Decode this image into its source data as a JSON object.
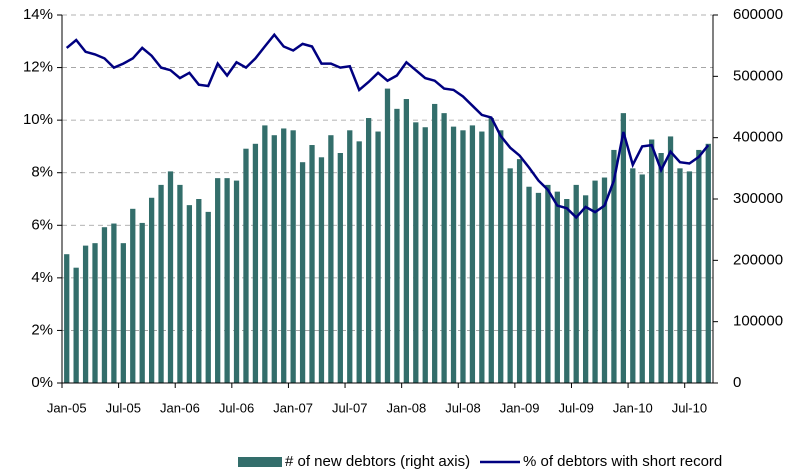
{
  "chart_data": {
    "type": "bar_line",
    "categories": [
      "Jan-05",
      null,
      null,
      null,
      null,
      null,
      "Jul-05",
      null,
      null,
      null,
      null,
      null,
      "Jan-06",
      null,
      null,
      null,
      null,
      null,
      "Jul-06",
      null,
      null,
      null,
      null,
      null,
      "Jan-07",
      null,
      null,
      null,
      null,
      null,
      "Jul-07",
      null,
      null,
      null,
      null,
      null,
      "Jan-08",
      null,
      null,
      null,
      null,
      null,
      "Jul-08",
      null,
      null,
      null,
      null,
      null,
      "Jan-09",
      null,
      null,
      null,
      null,
      null,
      "Jul-09",
      null,
      null,
      null,
      null,
      null,
      "Jan-10",
      null,
      null,
      null,
      null,
      null,
      "Jul-10",
      null,
      null
    ],
    "series": [
      {
        "name": "# of new debtors (right axis)",
        "type": "bar",
        "axis": "y2",
        "color": "#336e6b",
        "values": [
          210000,
          188000,
          224000,
          228000,
          254000,
          260000,
          228000,
          284000,
          261000,
          302000,
          323000,
          345000,
          323000,
          290000,
          300000,
          279000,
          334000,
          334000,
          330000,
          382000,
          390000,
          420000,
          404000,
          415000,
          412000,
          360000,
          388000,
          368000,
          404000,
          375000,
          412000,
          394000,
          432000,
          410000,
          480000,
          447000,
          463000,
          425000,
          417000,
          455000,
          440000,
          418000,
          412000,
          420000,
          410000,
          432000,
          412000,
          350000,
          365000,
          320000,
          310000,
          323000,
          312000,
          300000,
          323000,
          306000,
          330000,
          335000,
          380000,
          440000,
          350000,
          340000,
          397000,
          375000,
          402000,
          350000,
          345000,
          380000,
          390000
        ]
      },
      {
        "name": "% of debtors with short record",
        "type": "line",
        "axis": "y",
        "color": "#000080",
        "values": [
          12.75,
          13.05,
          12.6,
          12.5,
          12.35,
          12.0,
          12.15,
          12.35,
          12.75,
          12.45,
          12.0,
          11.9,
          11.6,
          11.8,
          11.35,
          11.3,
          12.15,
          11.7,
          12.2,
          12.0,
          12.35,
          12.8,
          13.25,
          12.8,
          12.65,
          12.9,
          12.8,
          12.15,
          12.15,
          12.0,
          12.05,
          11.15,
          11.45,
          11.8,
          11.5,
          11.7,
          12.2,
          11.9,
          11.6,
          11.5,
          11.2,
          11.15,
          10.9,
          10.55,
          10.2,
          10.1,
          9.4,
          8.95,
          8.65,
          8.2,
          7.7,
          7.35,
          6.75,
          6.65,
          6.3,
          6.7,
          6.5,
          6.75,
          7.7,
          9.55,
          8.3,
          9.0,
          9.05,
          8.1,
          8.8,
          8.4,
          8.35,
          8.6,
          9.05
        ]
      }
    ],
    "ylim": [
      0,
      14
    ],
    "yticks": [
      {
        "value": 0,
        "label": "0%"
      },
      {
        "value": 2,
        "label": "2%"
      },
      {
        "value": 4,
        "label": "4%"
      },
      {
        "value": 6,
        "label": "6%"
      },
      {
        "value": 8,
        "label": "8%"
      },
      {
        "value": 10,
        "label": "10%"
      },
      {
        "value": 12,
        "label": "12%"
      },
      {
        "value": 14,
        "label": "14%"
      }
    ],
    "y2lim": [
      0,
      600000
    ],
    "y2ticks": [
      0,
      100000,
      200000,
      300000,
      400000,
      500000,
      600000
    ],
    "grid": true,
    "legend": "bottom"
  }
}
